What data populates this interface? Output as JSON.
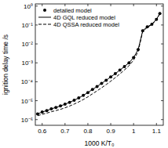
{
  "chart_data": {
    "type": "line",
    "x_label": "1000 K/T₀",
    "y_label": "ignition delay time /s",
    "log": "y",
    "legend": "top-left",
    "xlim": [
      0.57,
      1.13
    ],
    "ylim": [
      5e-07,
      1.3
    ],
    "xticks": [
      0.6,
      0.7,
      0.8,
      0.9,
      1,
      1.1
    ],
    "yticks": [
      {
        "value": 1e-06,
        "label": "10⁻⁶"
      },
      {
        "value": 1e-05,
        "label": "10⁻⁵"
      },
      {
        "value": 0.0001,
        "label": "10⁻⁴"
      },
      {
        "value": 0.001,
        "label": "10⁻³"
      },
      {
        "value": 0.01,
        "label": "10⁻²"
      },
      {
        "value": 0.1,
        "label": "10⁻¹"
      },
      {
        "value": 1,
        "label": "10⁰"
      }
    ],
    "x": [
      0.58,
      0.6,
      0.62,
      0.64,
      0.66,
      0.68,
      0.7,
      0.72,
      0.74,
      0.76,
      0.78,
      0.8,
      0.82,
      0.84,
      0.86,
      0.88,
      0.9,
      0.92,
      0.94,
      0.96,
      0.98,
      1.0,
      1.02,
      1.04,
      1.06,
      1.08,
      1.1,
      1.115
    ],
    "series": [
      {
        "name": "detailed model",
        "color": "#000000",
        "marker": "circle",
        "line_style": "none",
        "values": [
          2e-06,
          2.5e-06,
          3e-06,
          3.7e-06,
          4.4e-06,
          5.3e-06,
          6.5e-06,
          8.2e-06,
          1.05e-05,
          1.4e-05,
          1.9e-05,
          2.7e-05,
          3.9e-05,
          5.6e-05,
          8.2e-05,
          0.00012,
          0.00018,
          0.00027,
          0.00041,
          0.00064,
          0.001,
          0.0019,
          0.005,
          0.05,
          0.08,
          0.11,
          0.2,
          0.4
        ]
      },
      {
        "name": "4D GQL reduced model",
        "color": "#000000",
        "marker": "none",
        "line_style": "solid",
        "values": [
          2e-06,
          2.5e-06,
          3e-06,
          3.7e-06,
          4.4e-06,
          5.3e-06,
          6.5e-06,
          8.2e-06,
          1.05e-05,
          1.4e-05,
          1.9e-05,
          2.7e-05,
          3.9e-05,
          5.6e-05,
          8.2e-05,
          0.00012,
          0.00018,
          0.00027,
          0.00041,
          0.00064,
          0.001,
          0.0019,
          0.005,
          0.05,
          0.08,
          0.11,
          0.2,
          0.4
        ]
      },
      {
        "name": "4D QSSA reduced model",
        "color": "#000000",
        "marker": "none",
        "line_style": "dashed",
        "values": [
          1.6e-06,
          1.9e-06,
          2.2e-06,
          2.6e-06,
          3e-06,
          3.5e-06,
          4.2e-06,
          5.2e-06,
          6.6e-06,
          8.6e-06,
          1.15e-05,
          1.6e-05,
          2.3e-05,
          3.3e-05,
          4.8e-05,
          7.1e-05,
          0.000107,
          0.000165,
          0.00026,
          0.00042,
          0.0007,
          0.0014,
          0.004,
          0.045,
          0.075,
          0.105,
          0.19,
          0.4
        ]
      }
    ]
  }
}
